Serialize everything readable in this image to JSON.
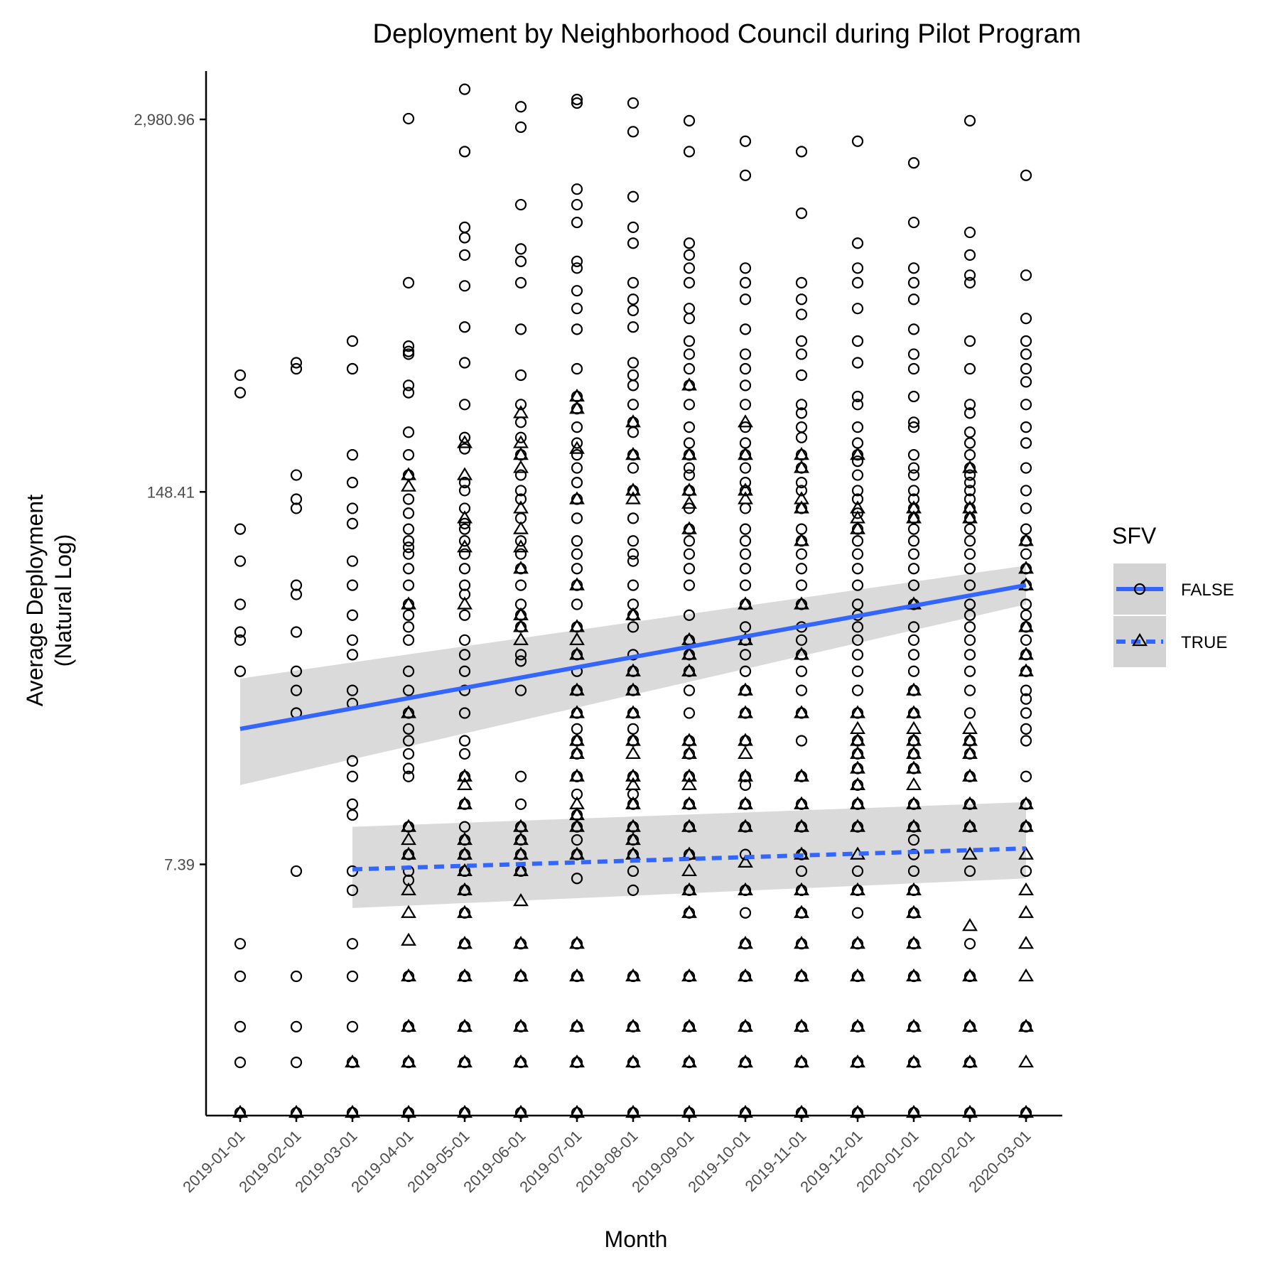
{
  "chart_data": {
    "type": "scatter",
    "title": "Deployment by Neighborhood Council during Pilot Program",
    "xlabel": "Month",
    "ylabel": [
      "Average Deployment",
      "(Natural Log)"
    ],
    "y_scale": "log",
    "y_ticks": [
      {
        "value": 7.39,
        "label": "7.39"
      },
      {
        "value": 148.41,
        "label": "148.41"
      },
      {
        "value": 2980.96,
        "label": "2,980.96"
      }
    ],
    "ylim": [
      1,
      4400
    ],
    "categories": [
      "2019-01-01",
      "2019-02-01",
      "2019-03-01",
      "2019-04-01",
      "2019-05-01",
      "2019-06-01",
      "2019-07-01",
      "2019-08-01",
      "2019-09-01",
      "2019-10-01",
      "2019-11-01",
      "2019-12-01",
      "2020-01-01",
      "2020-02-01",
      "2020-03-01"
    ],
    "legend": {
      "title": "SFV",
      "position": "right",
      "entries": [
        {
          "name": "FALSE",
          "marker": "circle",
          "line": "solid"
        },
        {
          "name": "TRUE",
          "marker": "triangle",
          "line": "dashed"
        }
      ]
    },
    "colors": {
      "trend": "#3366ff",
      "ribbon": "#d3d3d3",
      "points": "#000000",
      "axis": "#000000"
    },
    "series": [
      {
        "name": "FALSE",
        "marker": "circle",
        "points": [
          [
            1,
            380,
            330,
            110,
            85,
            60,
            48,
            45,
            35,
            3.9,
            3.0,
            2.0,
            1.5,
            1.0
          ],
          [
            2,
            420,
            400,
            170,
            140,
            130,
            70,
            65,
            48,
            35,
            30,
            25,
            7.0,
            3.0,
            2.0,
            1.5,
            1.0
          ],
          [
            3,
            500,
            400,
            200,
            160,
            130,
            115,
            85,
            70,
            55,
            45,
            40,
            30,
            27,
            17,
            15,
            12,
            11,
            7.0,
            6.0,
            3.9,
            3.0,
            2.0,
            1.5,
            1.0
          ],
          [
            4,
            3000,
            800,
            480,
            460,
            450,
            350,
            330,
            240,
            200,
            170,
            140,
            125,
            110,
            100,
            95,
            90,
            80,
            70,
            60,
            55,
            50,
            45,
            35,
            30,
            25,
            22,
            20,
            18,
            16,
            15,
            10,
            8,
            7,
            6.5,
            3.0,
            2.0,
            1.5,
            1.0
          ],
          [
            5,
            3800,
            2300,
            1250,
            1150,
            1000,
            780,
            560,
            420,
            300,
            230,
            210,
            160,
            150,
            130,
            115,
            110,
            100,
            90,
            80,
            70,
            65,
            55,
            45,
            40,
            35,
            30,
            25,
            20,
            18,
            15,
            12,
            10,
            9,
            8,
            7,
            6,
            5,
            3.9,
            3.0,
            2.0,
            1.5,
            1.0
          ],
          [
            6,
            3300,
            2800,
            1500,
            1050,
            950,
            800,
            550,
            380,
            300,
            260,
            230,
            200,
            170,
            150,
            140,
            120,
            100,
            90,
            80,
            70,
            60,
            55,
            50,
            40,
            38,
            30,
            15,
            12,
            10,
            9,
            8,
            7,
            3.9,
            3.0,
            2.0,
            1.5,
            1.0
          ],
          [
            7,
            3500,
            3400,
            1700,
            1500,
            1300,
            950,
            900,
            750,
            650,
            550,
            400,
            320,
            290,
            250,
            220,
            200,
            180,
            160,
            140,
            120,
            100,
            90,
            80,
            70,
            60,
            50,
            40,
            35,
            30,
            25,
            22,
            20,
            18,
            15,
            13,
            11,
            10,
            9,
            8,
            6.6,
            3.9,
            3.0,
            2.0,
            1.5,
            1.0
          ],
          [
            8,
            3400,
            2700,
            1600,
            1250,
            1100,
            800,
            700,
            640,
            560,
            420,
            380,
            350,
            300,
            260,
            240,
            200,
            180,
            150,
            120,
            100,
            90,
            85,
            70,
            60,
            55,
            50,
            40,
            35,
            30,
            25,
            22,
            20,
            15,
            13,
            12,
            10,
            9,
            8,
            7,
            6,
            3.0,
            2.0,
            1.5,
            1.0
          ],
          [
            9,
            2950,
            2300,
            1100,
            1000,
            900,
            800,
            650,
            600,
            500,
            450,
            400,
            350,
            300,
            250,
            220,
            200,
            180,
            170,
            150,
            130,
            110,
            100,
            90,
            80,
            70,
            55,
            45,
            40,
            35,
            30,
            25,
            20,
            18,
            15,
            12,
            10,
            8,
            6,
            5,
            3.0,
            2.0,
            1.5,
            1.0
          ],
          [
            10,
            2500,
            1900,
            900,
            800,
            700,
            550,
            450,
            400,
            350,
            300,
            250,
            220,
            200,
            180,
            160,
            150,
            130,
            110,
            100,
            90,
            80,
            70,
            60,
            50,
            45,
            40,
            35,
            30,
            25,
            20,
            15,
            14,
            12,
            10,
            8,
            6,
            5,
            3.9,
            3.0,
            2.0,
            1.5,
            1.0
          ],
          [
            11,
            2300,
            1400,
            800,
            700,
            620,
            500,
            450,
            380,
            300,
            280,
            250,
            230,
            200,
            180,
            160,
            150,
            130,
            110,
            100,
            90,
            80,
            70,
            60,
            50,
            45,
            40,
            35,
            30,
            25,
            20,
            15,
            12,
            10,
            8,
            7,
            6,
            5,
            3.9,
            3.0,
            2.0,
            1.5,
            1.0
          ],
          [
            12,
            2500,
            1100,
            900,
            800,
            650,
            500,
            420,
            320,
            300,
            250,
            220,
            200,
            190,
            170,
            150,
            140,
            125,
            110,
            100,
            90,
            80,
            70,
            60,
            55,
            50,
            45,
            40,
            35,
            30,
            25,
            20,
            18,
            16,
            14,
            12,
            10,
            7,
            6,
            5,
            3.9,
            3.0,
            2.0,
            1.5,
            1.0
          ],
          [
            13,
            2100,
            1300,
            900,
            800,
            700,
            550,
            450,
            400,
            320,
            260,
            250,
            200,
            180,
            170,
            150,
            140,
            130,
            120,
            110,
            100,
            90,
            80,
            70,
            60,
            50,
            45,
            40,
            35,
            30,
            25,
            20,
            18,
            16,
            12,
            10,
            9,
            8,
            7,
            6,
            5,
            3.9,
            3.0,
            2.0,
            1.5,
            1.0
          ],
          [
            14,
            2950,
            1200,
            1000,
            850,
            800,
            500,
            400,
            300,
            280,
            240,
            220,
            200,
            180,
            170,
            160,
            150,
            140,
            130,
            120,
            110,
            100,
            90,
            80,
            70,
            60,
            55,
            50,
            45,
            40,
            35,
            30,
            25,
            20,
            18,
            15,
            12,
            10,
            7,
            3.9,
            3.0,
            2.0,
            1.5,
            1.0
          ],
          [
            15,
            1900,
            850,
            600,
            500,
            450,
            400,
            360,
            300,
            250,
            220,
            180,
            150,
            130,
            110,
            100,
            90,
            80,
            70,
            60,
            55,
            50,
            45,
            40,
            35,
            30,
            28,
            25,
            22,
            20,
            15,
            12,
            10,
            7,
            2.0,
            1.0
          ]
        ]
      },
      {
        "name": "TRUE",
        "marker": "triangle",
        "points": [
          [
            1,
            1.0
          ],
          [
            2,
            1.0
          ],
          [
            3,
            1.5,
            1.0
          ],
          [
            4,
            170,
            155,
            60,
            25,
            10,
            9,
            8,
            6,
            5,
            4,
            3.0,
            2.0,
            1.5,
            1.0
          ],
          [
            5,
            220,
            170,
            120,
            95,
            60,
            15,
            14,
            12,
            9,
            8,
            7,
            6,
            5,
            3.9,
            3.0,
            2.0,
            1.5,
            1.0
          ],
          [
            6,
            280,
            220,
            200,
            180,
            130,
            110,
            95,
            80,
            55,
            50,
            45,
            10,
            9,
            8,
            7,
            5.5,
            3.9,
            3.0,
            2.0,
            1.5,
            1.0
          ],
          [
            7,
            320,
            290,
            210,
            140,
            70,
            50,
            45,
            40,
            30,
            25,
            20,
            18,
            15,
            12,
            11,
            10,
            8,
            3.9,
            3.0,
            2.0,
            1.5,
            1.0
          ],
          [
            8,
            260,
            200,
            150,
            140,
            55,
            35,
            30,
            25,
            20,
            18,
            15,
            14,
            12,
            10,
            9,
            8,
            3.0,
            2.0,
            1.5,
            1.0
          ],
          [
            9,
            350,
            200,
            150,
            135,
            110,
            45,
            40,
            35,
            20,
            18,
            15,
            14,
            12,
            10,
            8,
            7,
            6,
            5,
            3.0,
            2.0,
            1.5,
            1.0
          ],
          [
            10,
            260,
            200,
            150,
            140,
            60,
            45,
            30,
            25,
            20,
            18,
            15,
            12,
            10,
            7.5,
            6,
            3.9,
            3.0,
            2.0,
            1.5,
            1.0
          ],
          [
            11,
            200,
            180,
            140,
            130,
            100,
            60,
            40,
            25,
            15,
            12,
            10,
            8,
            6,
            5,
            3.9,
            3.0,
            2.0,
            1.5,
            1.0
          ],
          [
            12,
            200,
            130,
            120,
            110,
            25,
            22,
            20,
            18,
            16,
            14,
            12,
            10,
            8,
            6,
            3.9,
            3.0,
            2.0,
            1.5,
            1.0
          ],
          [
            13,
            130,
            120,
            60,
            30,
            25,
            22,
            20,
            18,
            16,
            14,
            12,
            10,
            6,
            5,
            3.9,
            3.0,
            2.0,
            1.5,
            1.0
          ],
          [
            14,
            180,
            130,
            120,
            22,
            20,
            18,
            15,
            12,
            10,
            8,
            4.5,
            3.0,
            2.0,
            1.5,
            1.0
          ],
          [
            15,
            100,
            80,
            70,
            50,
            40,
            35,
            12,
            10,
            8,
            6,
            5,
            3.9,
            3.0,
            2.0,
            1.5,
            1.0
          ]
        ]
      }
    ],
    "trend_lines": [
      {
        "series": "FALSE",
        "style": "solid",
        "x": [
          1,
          15
        ],
        "y": [
          22,
          70
        ],
        "ci_low": [
          14,
          60
        ],
        "ci_high": [
          33,
          82
        ]
      },
      {
        "series": "TRUE",
        "style": "dashed",
        "x": [
          3,
          15
        ],
        "y": [
          7.1,
          8.4
        ],
        "ci_low": [
          5.2,
          6.6
        ],
        "ci_high": [
          10.0,
          12.2
        ]
      }
    ]
  }
}
